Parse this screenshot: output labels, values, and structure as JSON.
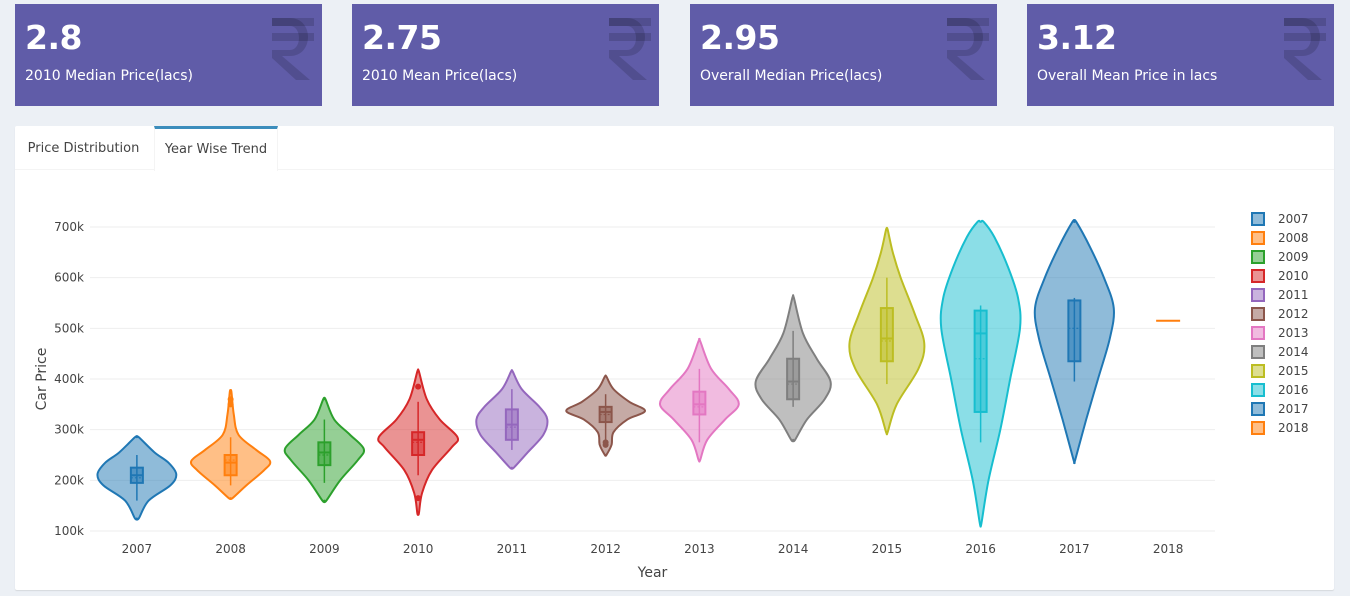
{
  "kpis": [
    {
      "value": "2.8",
      "label": "2010 Median Price(lacs)",
      "icon": "rupee-icon"
    },
    {
      "value": "2.75",
      "label": "2010 Mean Price(lacs)",
      "icon": "rupee-icon"
    },
    {
      "value": "2.95",
      "label": "Overall Median Price(lacs)",
      "icon": "rupee-icon"
    },
    {
      "value": "3.12",
      "label": "Overall Mean Price in lacs",
      "icon": "rupee-icon"
    }
  ],
  "colors": {
    "kpi_bg": "#605ca8",
    "tab_accent": "#3c8dbc",
    "page_bg": "#ecf0f5"
  },
  "tabs": [
    {
      "label": "Price Distribution",
      "active": false
    },
    {
      "label": "Year Wise Trend",
      "active": true
    }
  ],
  "chart_data": {
    "type": "violin",
    "title": "",
    "xlabel": "Year",
    "ylabel": "Car Price",
    "ylim": [
      100000,
      700000
    ],
    "yticks": [
      {
        "value": 100000,
        "label": "100k"
      },
      {
        "value": 200000,
        "label": "200k"
      },
      {
        "value": 300000,
        "label": "300k"
      },
      {
        "value": 400000,
        "label": "400k"
      },
      {
        "value": 500000,
        "label": "500k"
      },
      {
        "value": 600000,
        "label": "600k"
      },
      {
        "value": 700000,
        "label": "700k"
      }
    ],
    "grid": true,
    "legend_position": "right",
    "series": [
      {
        "name": "2007",
        "color": "#1f77b4",
        "min": 125000,
        "max": 285000,
        "q1": 195000,
        "median": 210000,
        "q3": 225000,
        "mean": 205000,
        "whisker_low": 160000,
        "whisker_high": 250000,
        "outliers": [],
        "profile": [
          [
            125000,
            0.05
          ],
          [
            160000,
            0.3
          ],
          [
            190000,
            0.85
          ],
          [
            212000,
            1
          ],
          [
            235000,
            0.8
          ],
          [
            255000,
            0.45
          ],
          [
            285000,
            0.05
          ]
        ]
      },
      {
        "name": "2008",
        "color": "#ff7f0e",
        "min": 165000,
        "max": 375000,
        "q1": 210000,
        "median": 235000,
        "q3": 250000,
        "mean": 240000,
        "whisker_low": 190000,
        "whisker_high": 285000,
        "outliers": [
          350000,
          360000
        ],
        "profile": [
          [
            165000,
            0.05
          ],
          [
            190000,
            0.4
          ],
          [
            220000,
            0.85
          ],
          [
            238000,
            1
          ],
          [
            260000,
            0.65
          ],
          [
            290000,
            0.2
          ],
          [
            330000,
            0.08
          ],
          [
            375000,
            0.02
          ]
        ]
      },
      {
        "name": "2009",
        "color": "#2ca02c",
        "min": 160000,
        "max": 360000,
        "q1": 230000,
        "median": 255000,
        "q3": 275000,
        "mean": 250000,
        "whisker_low": 195000,
        "whisker_high": 320000,
        "outliers": [],
        "profile": [
          [
            160000,
            0.05
          ],
          [
            200000,
            0.4
          ],
          [
            240000,
            0.85
          ],
          [
            262000,
            1
          ],
          [
            290000,
            0.65
          ],
          [
            320000,
            0.25
          ],
          [
            360000,
            0.03
          ]
        ]
      },
      {
        "name": "2010",
        "color": "#d62728",
        "min": 135000,
        "max": 415000,
        "q1": 250000,
        "median": 280000,
        "q3": 295000,
        "mean": 275000,
        "whisker_low": 210000,
        "whisker_high": 355000,
        "outliers": [
          165000,
          385000
        ],
        "profile": [
          [
            135000,
            0.02
          ],
          [
            175000,
            0.1
          ],
          [
            220000,
            0.35
          ],
          [
            265000,
            0.85
          ],
          [
            285000,
            1
          ],
          [
            320000,
            0.55
          ],
          [
            360000,
            0.22
          ],
          [
            415000,
            0.02
          ]
        ]
      },
      {
        "name": "2011",
        "color": "#9467bd",
        "min": 225000,
        "max": 415000,
        "q1": 280000,
        "median": 310000,
        "q3": 340000,
        "mean": 305000,
        "whisker_low": 260000,
        "whisker_high": 380000,
        "outliers": [],
        "profile": [
          [
            225000,
            0.05
          ],
          [
            255000,
            0.4
          ],
          [
            290000,
            0.8
          ],
          [
            320000,
            0.9
          ],
          [
            345000,
            0.7
          ],
          [
            380000,
            0.25
          ],
          [
            415000,
            0.02
          ]
        ]
      },
      {
        "name": "2012",
        "color": "#8c564b",
        "min": 250000,
        "max": 405000,
        "q1": 315000,
        "median": 335000,
        "q3": 345000,
        "mean": 330000,
        "whisker_low": 280000,
        "whisker_high": 370000,
        "outliers": [
          275000,
          270000
        ],
        "profile": [
          [
            250000,
            0.02
          ],
          [
            270000,
            0.15
          ],
          [
            295000,
            0.2
          ],
          [
            320000,
            0.55
          ],
          [
            337000,
            1
          ],
          [
            355000,
            0.6
          ],
          [
            380000,
            0.2
          ],
          [
            405000,
            0.02
          ]
        ]
      },
      {
        "name": "2013",
        "color": "#e377c2",
        "min": 240000,
        "max": 475000,
        "q1": 330000,
        "median": 350000,
        "q3": 375000,
        "mean": 345000,
        "whisker_low": 275000,
        "whisker_high": 420000,
        "outliers": [],
        "profile": [
          [
            240000,
            0.02
          ],
          [
            280000,
            0.2
          ],
          [
            320000,
            0.65
          ],
          [
            350000,
            1
          ],
          [
            380000,
            0.75
          ],
          [
            420000,
            0.3
          ],
          [
            475000,
            0.02
          ]
        ]
      },
      {
        "name": "2014",
        "color": "#7f7f7f",
        "min": 280000,
        "max": 560000,
        "q1": 360000,
        "median": 395000,
        "q3": 440000,
        "mean": 390000,
        "whisker_low": 345000,
        "whisker_high": 495000,
        "outliers": [],
        "profile": [
          [
            280000,
            0.05
          ],
          [
            320000,
            0.35
          ],
          [
            360000,
            0.8
          ],
          [
            395000,
            0.95
          ],
          [
            440000,
            0.6
          ],
          [
            490000,
            0.25
          ],
          [
            560000,
            0.02
          ]
        ]
      },
      {
        "name": "2015",
        "color": "#bcbd22",
        "min": 295000,
        "max": 695000,
        "q1": 435000,
        "median": 480000,
        "q3": 540000,
        "mean": 475000,
        "whisker_low": 390000,
        "whisker_high": 600000,
        "outliers": [],
        "profile": [
          [
            295000,
            0.02
          ],
          [
            350000,
            0.25
          ],
          [
            420000,
            0.8
          ],
          [
            470000,
            0.95
          ],
          [
            530000,
            0.7
          ],
          [
            600000,
            0.35
          ],
          [
            650000,
            0.15
          ],
          [
            695000,
            0.02
          ]
        ]
      },
      {
        "name": "2016",
        "color": "#17becf",
        "min": 115000,
        "max": 710000,
        "q1": 335000,
        "median": 490000,
        "q3": 535000,
        "mean": 440000,
        "whisker_low": 275000,
        "whisker_high": 545000,
        "outliers": [],
        "profile": [
          [
            115000,
            0.02
          ],
          [
            200000,
            0.2
          ],
          [
            300000,
            0.5
          ],
          [
            400000,
            0.75
          ],
          [
            500000,
            1
          ],
          [
            560000,
            0.95
          ],
          [
            620000,
            0.7
          ],
          [
            680000,
            0.35
          ],
          [
            710000,
            0.08
          ]
        ]
      },
      {
        "name": "2017",
        "color": "#1f77b4",
        "min": 240000,
        "max": 710000,
        "q1": 435000,
        "median": 555000,
        "q3": 555000,
        "mean": 500000,
        "whisker_low": 395000,
        "whisker_high": 560000,
        "outliers": [],
        "profile": [
          [
            240000,
            0.02
          ],
          [
            320000,
            0.3
          ],
          [
            400000,
            0.6
          ],
          [
            480000,
            0.9
          ],
          [
            540000,
            1
          ],
          [
            600000,
            0.75
          ],
          [
            660000,
            0.4
          ],
          [
            710000,
            0.05
          ]
        ]
      },
      {
        "name": "2018",
        "color": "#ff7f0e",
        "min": 515000,
        "max": 515000,
        "q1": 515000,
        "median": 515000,
        "q3": 515000,
        "mean": 515000,
        "whisker_low": 515000,
        "whisker_high": 515000,
        "outliers": [],
        "profile": []
      }
    ]
  }
}
